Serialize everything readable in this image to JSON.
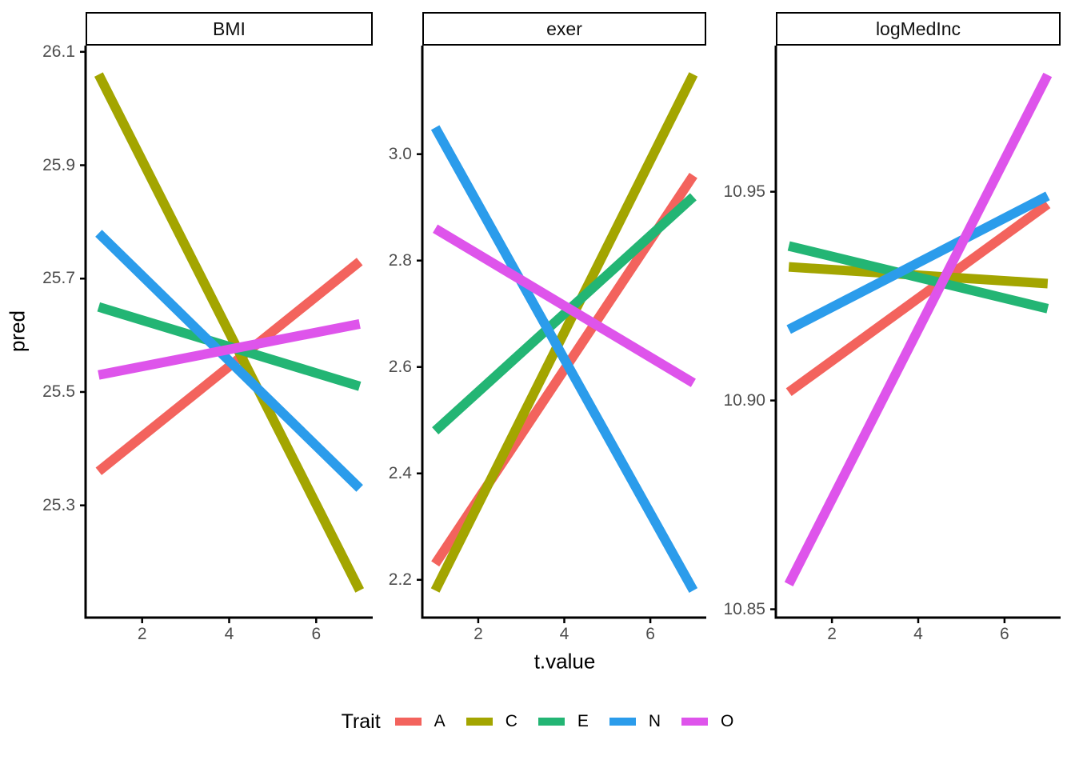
{
  "chart_data": {
    "type": "line",
    "xlabel": "t.value",
    "ylabel": "pred",
    "legend_title": "Trait",
    "legend_position": "bottom",
    "grid": false,
    "x": [
      1,
      7
    ],
    "xlim": [
      0.7,
      7.3
    ],
    "x_ticks": [
      "2",
      "4",
      "6"
    ],
    "series": [
      {
        "name": "A",
        "color": "#F3635D"
      },
      {
        "name": "C",
        "color": "#A3A500"
      },
      {
        "name": "E",
        "color": "#23B574"
      },
      {
        "name": "N",
        "color": "#2B9CEB"
      },
      {
        "name": "O",
        "color": "#DE54EB"
      }
    ],
    "panels": [
      {
        "title": "BMI",
        "ylim": [
          25.102,
          26.111
        ],
        "y_ticks": [
          "26.1",
          "25.9",
          "25.7",
          "25.5",
          "25.3"
        ],
        "series": [
          {
            "name": "A",
            "values": [
              25.36,
              25.73
            ]
          },
          {
            "name": "C",
            "values": [
              26.06,
              25.15
            ]
          },
          {
            "name": "E",
            "values": [
              25.65,
              25.51
            ]
          },
          {
            "name": "N",
            "values": [
              25.78,
              25.33
            ]
          },
          {
            "name": "O",
            "values": [
              25.53,
              25.62
            ]
          }
        ]
      },
      {
        "title": "exer",
        "ylim": [
          2.129,
          3.204
        ],
        "y_ticks": [
          "3.0",
          "2.8",
          "2.6",
          "2.4",
          "2.2"
        ],
        "series": [
          {
            "name": "A",
            "values": [
              2.23,
              2.96
            ]
          },
          {
            "name": "C",
            "values": [
              2.18,
              3.15
            ]
          },
          {
            "name": "E",
            "values": [
              2.48,
              2.92
            ]
          },
          {
            "name": "N",
            "values": [
              3.05,
              2.18
            ]
          },
          {
            "name": "O",
            "values": [
              2.86,
              2.57
            ]
          }
        ]
      },
      {
        "title": "logMedInc",
        "ylim": [
          10.848,
          10.985
        ],
        "y_ticks": [
          "10.95",
          "10.90",
          "10.85"
        ],
        "series": [
          {
            "name": "A",
            "values": [
              10.902,
              10.947
            ]
          },
          {
            "name": "C",
            "values": [
              10.932,
              10.928
            ]
          },
          {
            "name": "E",
            "values": [
              10.937,
              10.922
            ]
          },
          {
            "name": "N",
            "values": [
              10.917,
              10.949
            ]
          },
          {
            "name": "O",
            "values": [
              10.856,
              10.978
            ]
          }
        ]
      }
    ]
  }
}
